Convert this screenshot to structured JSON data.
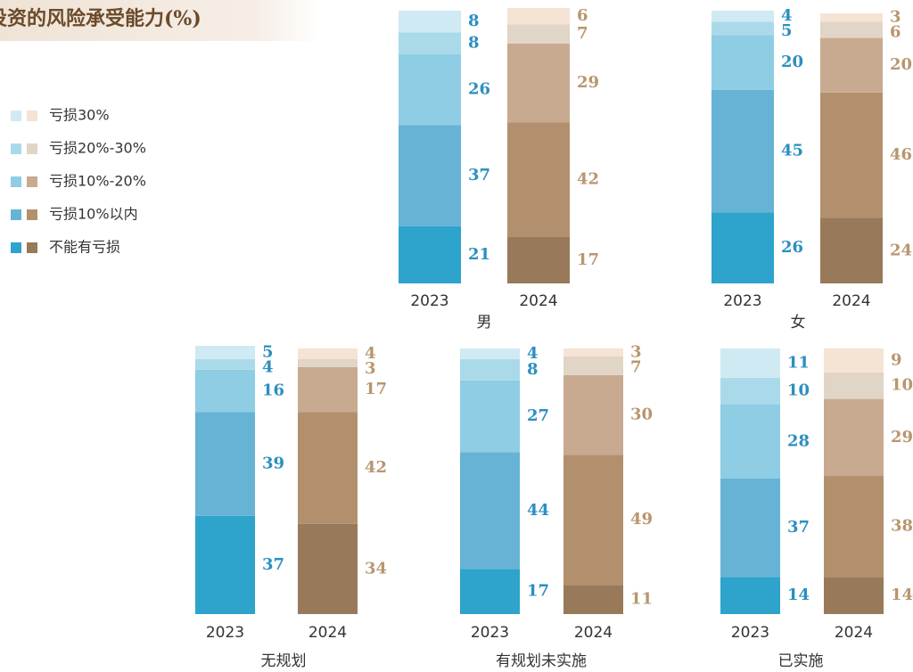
{
  "chart_data": {
    "type": "stacked-bar",
    "title": "投资的风险承受能力(%)",
    "ylim": [
      0,
      100
    ],
    "series": [
      {
        "name": "不能有亏损",
        "colors": [
          "#2ea3cb",
          "#98795a"
        ]
      },
      {
        "name": "亏损10%以内",
        "colors": [
          "#66b3d6",
          "#b3906d"
        ]
      },
      {
        "name": "亏损10%-20%",
        "colors": [
          "#8ecde4",
          "#c8aa90"
        ]
      },
      {
        "name": "亏损20%-30%",
        "colors": [
          "#aadaea",
          "#e0d5c6"
        ]
      },
      {
        "name": "亏损30%",
        "colors": [
          "#cfeaf3",
          "#f5e3d4"
        ]
      }
    ],
    "label_colors": [
      "#2b8fc0",
      "#b8966f"
    ],
    "panels": [
      {
        "label": "男",
        "categories": [
          "2023",
          "2024"
        ],
        "values": [
          [
            21,
            17
          ],
          [
            37,
            42
          ],
          [
            26,
            29
          ],
          [
            8,
            7
          ],
          [
            8,
            6
          ]
        ]
      },
      {
        "label": "女",
        "categories": [
          "2023",
          "2024"
        ],
        "values": [
          [
            26,
            24
          ],
          [
            45,
            46
          ],
          [
            20,
            20
          ],
          [
            5,
            6
          ],
          [
            4,
            3
          ]
        ]
      },
      {
        "label": "无规划",
        "categories": [
          "2023",
          "2024"
        ],
        "values": [
          [
            37,
            34
          ],
          [
            39,
            42
          ],
          [
            16,
            17
          ],
          [
            4,
            3
          ],
          [
            5,
            4
          ]
        ]
      },
      {
        "label": "有规划未实施",
        "categories": [
          "2023",
          "2024"
        ],
        "values": [
          [
            17,
            11
          ],
          [
            44,
            49
          ],
          [
            27,
            30
          ],
          [
            8,
            7
          ],
          [
            4,
            3
          ]
        ]
      },
      {
        "label": "已实施",
        "categories": [
          "2023",
          "2024"
        ],
        "values": [
          [
            14,
            14
          ],
          [
            37,
            38
          ],
          [
            28,
            29
          ],
          [
            10,
            10
          ],
          [
            11,
            9
          ]
        ]
      }
    ]
  }
}
